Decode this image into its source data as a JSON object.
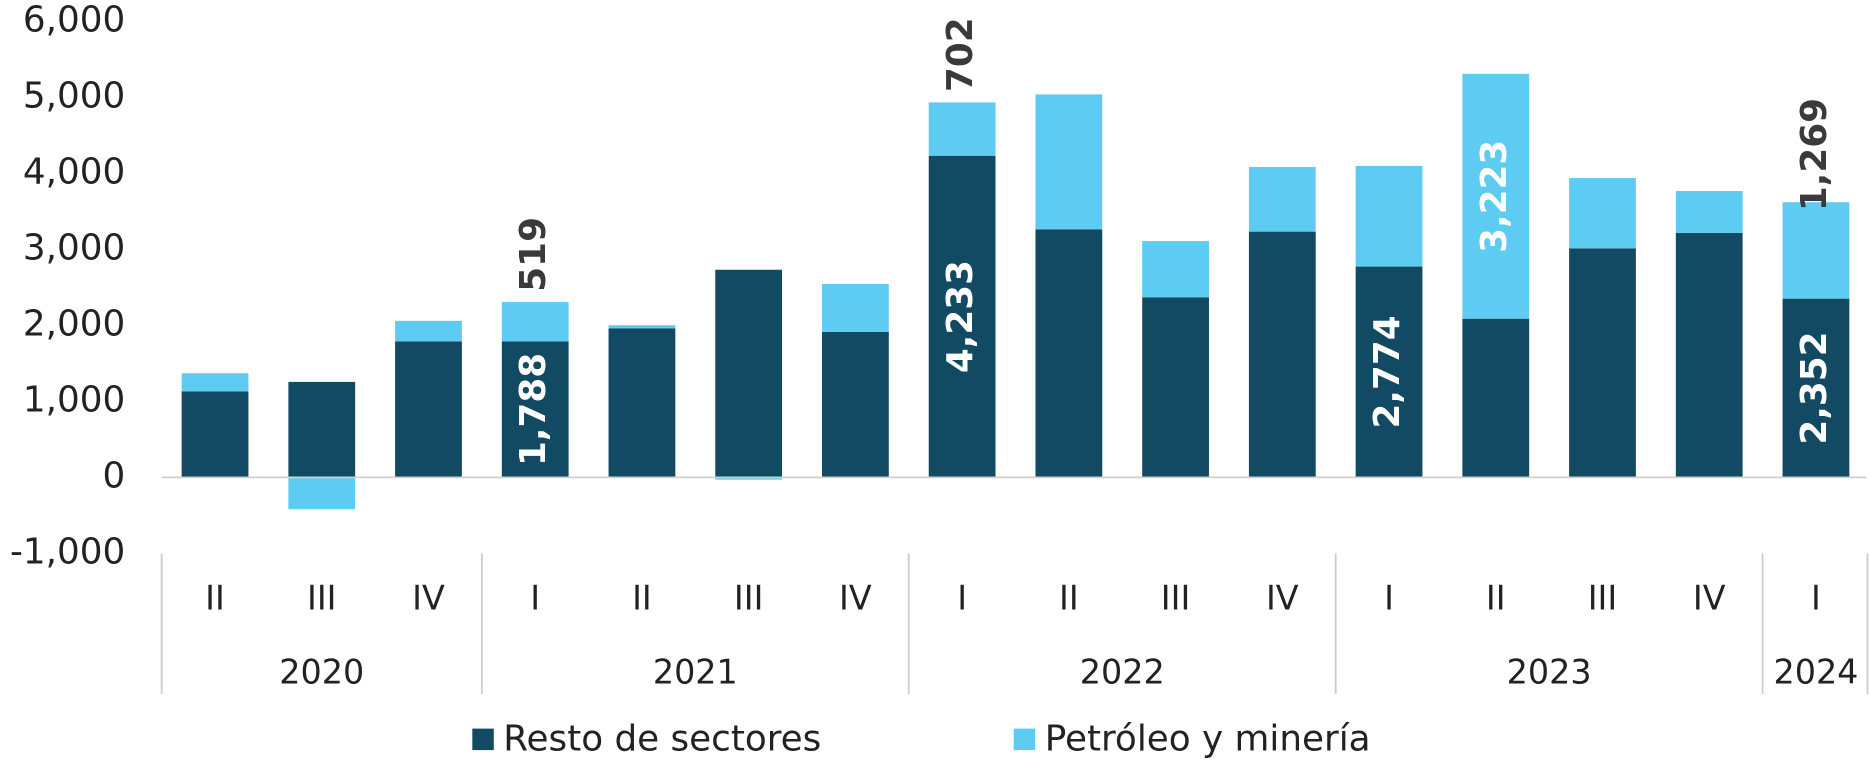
{
  "chart_data": {
    "type": "stacked_bar",
    "groups": [
      {
        "label": "2020",
        "categories": [
          "II",
          "III",
          "IV"
        ]
      },
      {
        "label": "2021",
        "categories": [
          "I",
          "II",
          "III",
          "IV"
        ]
      },
      {
        "label": "2022",
        "categories": [
          "I",
          "II",
          "III",
          "IV"
        ]
      },
      {
        "label": "2023",
        "categories": [
          "I",
          "II",
          "III",
          "IV"
        ]
      },
      {
        "label": "2024",
        "categories": [
          "I"
        ]
      }
    ],
    "series": [
      {
        "name": "Resto de sectores",
        "color": "#134a63",
        "values": [
          1130,
          1256,
          1790,
          1788,
          1962,
          2732,
          1915,
          4233,
          3265,
          2370,
          3234,
          2774,
          2088,
          3014,
          3218,
          2352
        ],
        "value_labels": [
          null,
          null,
          null,
          "1,788",
          null,
          null,
          null,
          "4,233",
          null,
          null,
          null,
          "2,774",
          null,
          null,
          null,
          "2,352"
        ]
      },
      {
        "name": "Petróleo y minería",
        "color": "#5ecbf2",
        "values": [
          240,
          -420,
          270,
          519,
          40,
          -30,
          630,
          702,
          1775,
          740,
          850,
          1325,
          3223,
          925,
          550,
          1269
        ],
        "value_labels": [
          null,
          null,
          null,
          "519",
          null,
          null,
          null,
          "702",
          null,
          null,
          null,
          null,
          "3,223",
          null,
          null,
          "1,269"
        ]
      }
    ],
    "ylim": [
      -1000,
      6000
    ],
    "yticks": [
      {
        "value": -1000,
        "label": "-1,000"
      },
      0,
      {
        "value": 1000,
        "label": "1,000"
      },
      {
        "value": 2000,
        "label": "2,000"
      },
      {
        "value": 3000,
        "label": "3,000"
      },
      {
        "value": 4000,
        "label": "4,000"
      },
      {
        "value": 5000,
        "label": "5,000"
      },
      {
        "value": 6000,
        "label": "6,000"
      }
    ],
    "legend": "bottom"
  }
}
